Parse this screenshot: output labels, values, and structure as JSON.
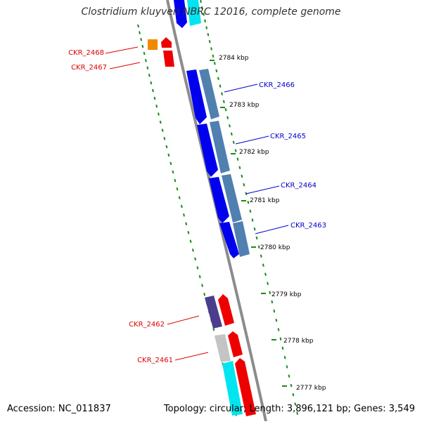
{
  "title": "Clostridium kluyveri NBRC 12016, complete genome",
  "footer": {
    "accession": "Accession: NC_011837",
    "summary": "Topology: circular; Length: 3,896,121 bp; Genes: 3,549"
  },
  "colors": {
    "backbone": "#8c8c8c",
    "tick": "#1a8a1a",
    "forward_label": "#0000cc",
    "reverse_label": "#dd0000",
    "cds_blue": "#0000ee",
    "cds_steel": "#4f80b0",
    "cds_red": "#ee0000",
    "cds_orange": "#f08a00",
    "cds_indigo": "#4b3c8c",
    "cds_grey": "#c4c4c4",
    "cds_cyan": "#00e5f0"
  },
  "scale_labels": [
    "2784 kbp",
    "2783 kbp",
    "2782 kbp",
    "2781 kbp",
    "2780 kbp",
    "2779 kbp",
    "2778 kbp",
    "2777 kbp"
  ],
  "gene_labels": {
    "CKR_2468": "CKR_2468",
    "CKR_2467": "CKR_2467",
    "CKR_2466": "CKR_2466",
    "CKR_2465": "CKR_2465",
    "CKR_2464": "CKR_2464",
    "CKR_2463": "CKR_2463",
    "CKR_2462": "CKR_2462",
    "CKR_2461": "CKR_2461"
  }
}
